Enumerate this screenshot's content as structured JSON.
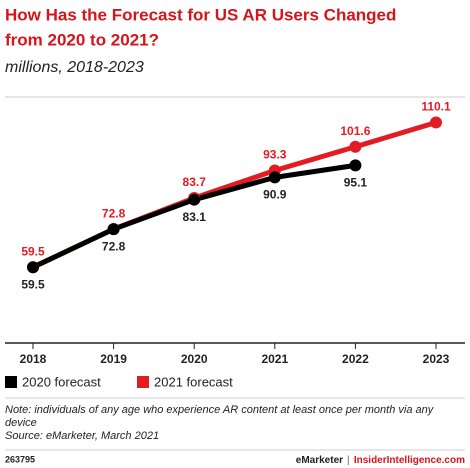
{
  "chart_data": {
    "type": "line",
    "title": [
      "How Has the Forecast for US AR Users Changed",
      "from 2020 to 2021?"
    ],
    "subtitle": "millions, 2018-2023",
    "categories": [
      "2018",
      "2019",
      "2020",
      "2021",
      "2022",
      "2023"
    ],
    "series": [
      {
        "name": "2020 forecast",
        "color": "#000000",
        "values": [
          59.5,
          72.8,
          83.1,
          90.9,
          95.1,
          null
        ]
      },
      {
        "name": "2021 forecast",
        "color": "#e31b23",
        "values": [
          59.5,
          72.8,
          83.7,
          93.3,
          101.6,
          110.1
        ]
      }
    ],
    "ylim": [
      33,
      119
    ]
  },
  "notes": {
    "note": "Note: individuals of any age who experience AR content at least once per month via any device",
    "source": "Source: eMarketer, March 2021"
  },
  "footer": {
    "id": "263795",
    "brand": "eMarketer",
    "separator": "|",
    "site": "InsiderIntelligence.com"
  }
}
